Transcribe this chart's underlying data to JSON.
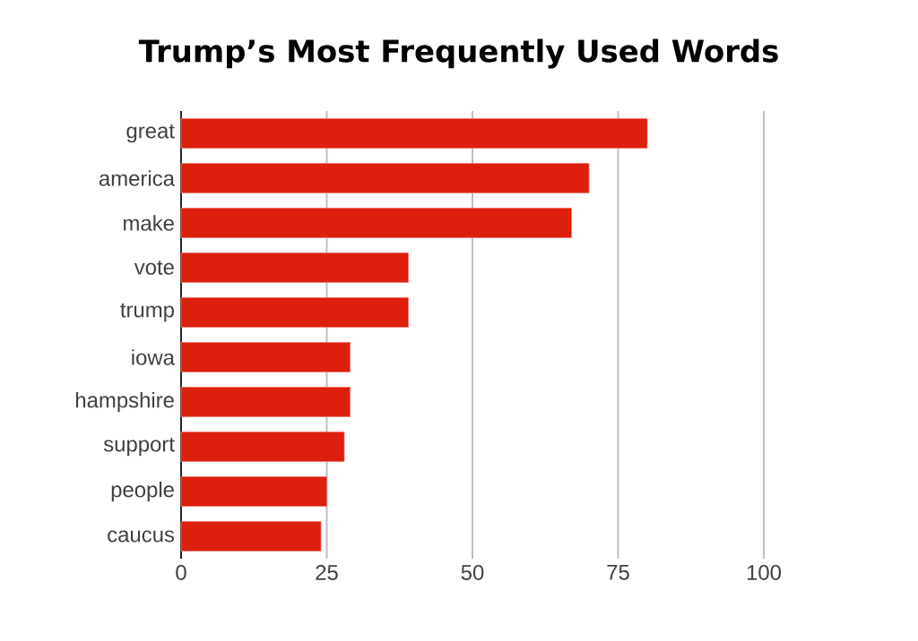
{
  "chart_data": {
    "type": "bar",
    "orientation": "horizontal",
    "title": "Trump’s Most Frequently Used Words",
    "categories": [
      "great",
      "america",
      "make",
      "vote",
      "trump",
      "iowa",
      "hampshire",
      "support",
      "people",
      "caucus"
    ],
    "values": [
      80,
      70,
      67,
      39,
      39,
      29,
      29,
      28,
      25,
      24
    ],
    "color": "#dd1f0d",
    "xlim": [
      0,
      100
    ],
    "xticks": [
      0,
      25,
      50,
      75,
      100
    ],
    "grid": "x"
  }
}
